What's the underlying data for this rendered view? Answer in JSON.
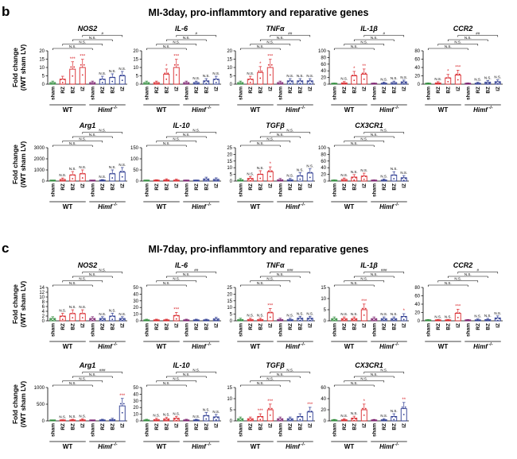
{
  "figure": {
    "panels": [
      {
        "letter": "b",
        "title": "MI-3day, pro-inflammtory and reparative genes"
      },
      {
        "letter": "c",
        "title": "MI-7day, pro-inflammtory and reparative genes"
      }
    ],
    "ylabel_line1": "Fold change",
    "ylabel_line2": "(/WT sham LV)",
    "group_wt": "WT",
    "group_himf": "Himf",
    "group_himf_sup": "-/-",
    "bar_labels": [
      "sham",
      "RZ",
      "BZ",
      "IZ",
      "sham",
      "RZ",
      "BZ",
      "IZ"
    ]
  },
  "colors": {
    "wt_sham": "#2e8b3a",
    "wt_lesion": "#d8262b",
    "himf": "#2b3990",
    "himf_alt": "#7b1f6e",
    "axis": "#000000"
  },
  "chart_data": [
    {
      "type": "bar",
      "panel": "b",
      "title": "NOS2",
      "ylim": [
        0,
        20
      ],
      "yticks": [
        "0",
        "5",
        "10",
        "15",
        "20"
      ],
      "values": [
        1,
        3,
        9,
        10,
        1,
        3,
        4,
        5
      ],
      "stars": [
        "",
        "",
        "***",
        "***",
        "",
        "N.S.",
        "N.S.",
        "N.S."
      ],
      "brackets": [
        "N.S.",
        "N.S.",
        "N.S.",
        "#"
      ]
    },
    {
      "type": "bar",
      "panel": "b",
      "title": "IL-6",
      "ylim": [
        0,
        20
      ],
      "yticks": [
        "0",
        "5",
        "10",
        "15",
        "20"
      ],
      "values": [
        1,
        1,
        6,
        10,
        1,
        1,
        2,
        3
      ],
      "stars": [
        "",
        "",
        "*",
        "***",
        "",
        "N.S.",
        "N.S.",
        "N.S."
      ],
      "brackets": [
        "N.S.",
        "N.S.",
        "N.S.",
        "#"
      ]
    },
    {
      "type": "bar",
      "panel": "b",
      "title": "TNFα",
      "ylim": [
        0,
        20
      ],
      "yticks": [
        "0",
        "5",
        "10",
        "15",
        "20"
      ],
      "values": [
        1,
        3,
        7,
        10,
        1,
        2,
        2,
        2
      ],
      "stars": [
        "",
        "N.S.",
        "*",
        "***",
        "",
        "N.S.",
        "N.S.",
        "N.S."
      ],
      "brackets": [
        "N.S.",
        "N.S.",
        "N.S.",
        "##"
      ]
    },
    {
      "type": "bar",
      "panel": "b",
      "title": "IL-1β",
      "ylim": [
        0,
        100
      ],
      "yticks": [
        "0",
        "20",
        "40",
        "60",
        "80",
        "100"
      ],
      "values": [
        1,
        4,
        25,
        30,
        1,
        3,
        5,
        7
      ],
      "stars": [
        "",
        "N.S.",
        "*",
        "**",
        "",
        "N.S.",
        "N.S.",
        "N.S."
      ],
      "brackets": [
        "N.S.",
        "N.S.",
        "N.S.",
        "#"
      ]
    },
    {
      "type": "bar",
      "panel": "b",
      "title": "CCR2",
      "ylim": [
        0,
        80
      ],
      "yticks": [
        "0",
        "20",
        "40",
        "60",
        "80"
      ],
      "values": [
        1,
        3,
        15,
        22,
        1,
        2,
        5,
        6
      ],
      "stars": [
        "",
        "N.S.",
        "*",
        "***",
        "",
        "N.S.",
        "N.S.",
        "N.S."
      ],
      "brackets": [
        "N.S.",
        "N.S.",
        "N.S.",
        "##"
      ]
    },
    {
      "type": "bar",
      "panel": "b",
      "title": "Arg1",
      "ylim": [
        0,
        3000
      ],
      "yticks": [
        "0",
        "1000",
        "2000",
        "3000"
      ],
      "values": [
        1,
        150,
        550,
        650,
        1,
        50,
        650,
        800
      ],
      "stars": [
        "",
        "N.S.",
        "N.S.",
        "N.S.",
        "",
        "N.S.",
        "N.S.",
        "N.S."
      ],
      "brackets": [
        "N.S.",
        "N.S.",
        "N.S.",
        "N.S."
      ]
    },
    {
      "type": "bar",
      "panel": "b",
      "title": "IL-10",
      "ylim": [
        0,
        150
      ],
      "yticks": [
        "0",
        "50",
        "100",
        "150"
      ],
      "values": [
        1,
        2,
        5,
        4,
        1,
        1,
        10,
        8
      ],
      "stars": [
        "",
        "",
        "",
        "",
        "",
        "",
        "",
        ""
      ],
      "brackets": [
        "N.S.",
        "N.S.",
        "N.S.",
        "N.S."
      ]
    },
    {
      "type": "bar",
      "panel": "b",
      "title": "TGFβ",
      "ylim": [
        0,
        25
      ],
      "yticks": [
        "0",
        "5",
        "10",
        "15",
        "20",
        "25"
      ],
      "values": [
        1,
        2,
        5,
        7,
        1,
        1,
        4,
        6
      ],
      "stars": [
        "",
        "N.S.",
        "N.S.",
        "*",
        "",
        "N.S.",
        "N.S.",
        "N.S."
      ],
      "brackets": [
        "N.S.",
        "N.S.",
        "N.S.",
        "N.S."
      ]
    },
    {
      "type": "bar",
      "panel": "b",
      "title": "CX3CR1",
      "ylim": [
        0,
        100
      ],
      "yticks": [
        "0",
        "20",
        "40",
        "60",
        "80",
        "100"
      ],
      "values": [
        1,
        5,
        12,
        15,
        1,
        3,
        18,
        10
      ],
      "stars": [
        "",
        "N.S.",
        "N.S.",
        "N.S.",
        "",
        "N.S.",
        "N.S.",
        "N.S."
      ],
      "brackets": [
        "N.S.",
        "N.S.",
        "N.S.",
        "N.S."
      ]
    },
    {
      "type": "bar",
      "panel": "c",
      "title": "NOS2",
      "ylim": [
        0,
        14
      ],
      "yticks": [
        "0",
        "2",
        "4",
        "6",
        "8",
        "10",
        "12",
        "14"
      ],
      "values": [
        1,
        2,
        3,
        3,
        1,
        1,
        2,
        1
      ],
      "stars": [
        "",
        "N.S.",
        "N.S.",
        "N.S.",
        "",
        "N.S.",
        "N.S.",
        "N.S."
      ],
      "brackets": [
        "N.S.",
        "N.S.",
        "N.S.",
        "N.S."
      ]
    },
    {
      "type": "bar",
      "panel": "c",
      "title": "IL-6",
      "ylim": [
        0,
        50
      ],
      "yticks": [
        "0",
        "10",
        "20",
        "30",
        "40",
        "50"
      ],
      "values": [
        1,
        1,
        1,
        8,
        1,
        1,
        1,
        3
      ],
      "stars": [
        "",
        "",
        "",
        "***",
        "",
        "",
        "",
        ""
      ],
      "brackets": [
        "N.S.",
        "N.S.",
        "N.S.",
        "##"
      ]
    },
    {
      "type": "bar",
      "panel": "c",
      "title": "TNFα",
      "ylim": [
        0,
        25
      ],
      "yticks": [
        "0",
        "5",
        "10",
        "15",
        "20",
        "25"
      ],
      "values": [
        1,
        1,
        1,
        6,
        1,
        1,
        2,
        2
      ],
      "stars": [
        "",
        "N.S.",
        "N.S.",
        "***",
        "",
        "N.S.",
        "N.S.",
        "N.S."
      ],
      "brackets": [
        "N.S.",
        "N.S.",
        "N.S.",
        "###"
      ]
    },
    {
      "type": "bar",
      "panel": "c",
      "title": "IL-1β",
      "ylim": [
        0,
        15
      ],
      "yticks": [
        "0",
        "5",
        "10",
        "15"
      ],
      "values": [
        1,
        1,
        1,
        5,
        1,
        1,
        1,
        2
      ],
      "stars": [
        "",
        "N.S.",
        "N.S.",
        "***",
        "",
        "N.S.",
        "N.S.",
        "*"
      ],
      "brackets": [
        "N.S.",
        "N.S.",
        "N.S.",
        "###"
      ]
    },
    {
      "type": "bar",
      "panel": "c",
      "title": "CCR2",
      "ylim": [
        0,
        80
      ],
      "yticks": [
        "0",
        "20",
        "40",
        "60",
        "80"
      ],
      "values": [
        1,
        1,
        1,
        18,
        1,
        2,
        3,
        7
      ],
      "stars": [
        "",
        "N.S.",
        "N.S.",
        "***",
        "",
        "N.S.",
        "N.S.",
        "N.S."
      ],
      "brackets": [
        "N.S.",
        "N.S.",
        "N.S.",
        "#"
      ]
    },
    {
      "type": "bar",
      "panel": "c",
      "title": "Arg1",
      "ylim": [
        0,
        1000
      ],
      "yticks": [
        "0",
        "500",
        "1000"
      ],
      "values": [
        1,
        10,
        20,
        30,
        1,
        20,
        40,
        450
      ],
      "stars": [
        "",
        "N.S.",
        "N.S.",
        "N.S.",
        "",
        "",
        "",
        "***"
      ],
      "brackets": [
        "N.S.",
        "N.S.",
        "N.S.",
        "###"
      ]
    },
    {
      "type": "bar",
      "panel": "c",
      "title": "IL-10",
      "ylim": [
        0,
        50
      ],
      "yticks": [
        "0",
        "10",
        "20",
        "30",
        "40",
        "50"
      ],
      "values": [
        1,
        2,
        3,
        4,
        1,
        1,
        8,
        6
      ],
      "stars": [
        "",
        "N.S.",
        "N.S.",
        "N.S.",
        "",
        "N.S.",
        "N.S.",
        "N.S."
      ],
      "brackets": [
        "N.S.",
        "N.S.",
        "N.S.",
        "N.S."
      ]
    },
    {
      "type": "bar",
      "panel": "c",
      "title": "TGFβ",
      "ylim": [
        0,
        15
      ],
      "yticks": [
        "0",
        "5",
        "10",
        "15"
      ],
      "values": [
        1,
        1,
        2,
        5,
        1,
        1,
        2,
        4
      ],
      "stars": [
        "",
        "",
        "***",
        "***",
        "",
        "",
        "",
        "***"
      ],
      "brackets": [
        "N.S.",
        "N.S.",
        "N.S.",
        "N.S."
      ]
    },
    {
      "type": "bar",
      "panel": "c",
      "title": "CX3CR1",
      "ylim": [
        0,
        60
      ],
      "yticks": [
        "0",
        "20",
        "40",
        "60"
      ],
      "values": [
        1,
        2,
        5,
        20,
        1,
        2,
        8,
        22
      ],
      "stars": [
        "",
        "N.S.",
        "N.S.",
        "*",
        "",
        "N.S.",
        "N.S.",
        "**"
      ],
      "brackets": [
        "N.S.",
        "N.S.",
        "N.S.",
        "N.S."
      ]
    }
  ]
}
